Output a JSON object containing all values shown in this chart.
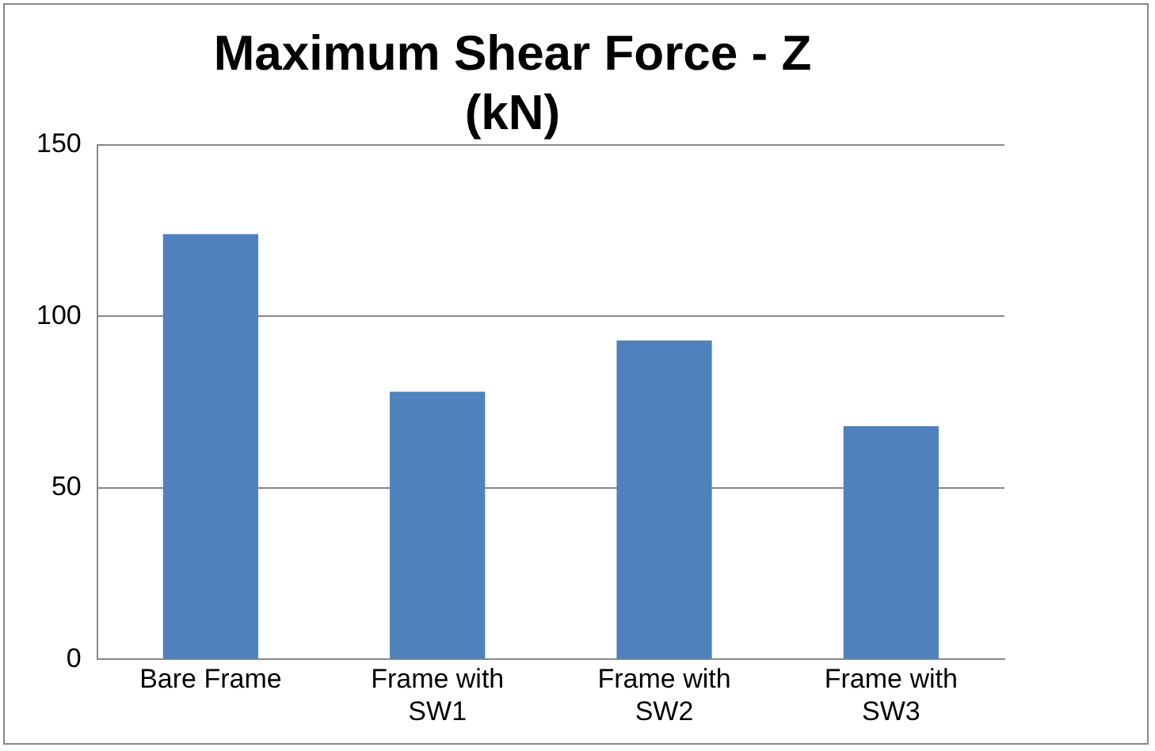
{
  "chart_data": {
    "type": "bar",
    "title": "Maximum Shear Force - Z (kN)",
    "categories": [
      "Bare Frame",
      "Frame with SW1",
      "Frame with SW2",
      "Frame with SW3"
    ],
    "values": [
      124,
      78,
      93,
      68
    ],
    "color": "#4f81bd",
    "ylim": [
      0,
      150
    ],
    "yticks": [
      0,
      50,
      100,
      150
    ],
    "grid": "y"
  }
}
